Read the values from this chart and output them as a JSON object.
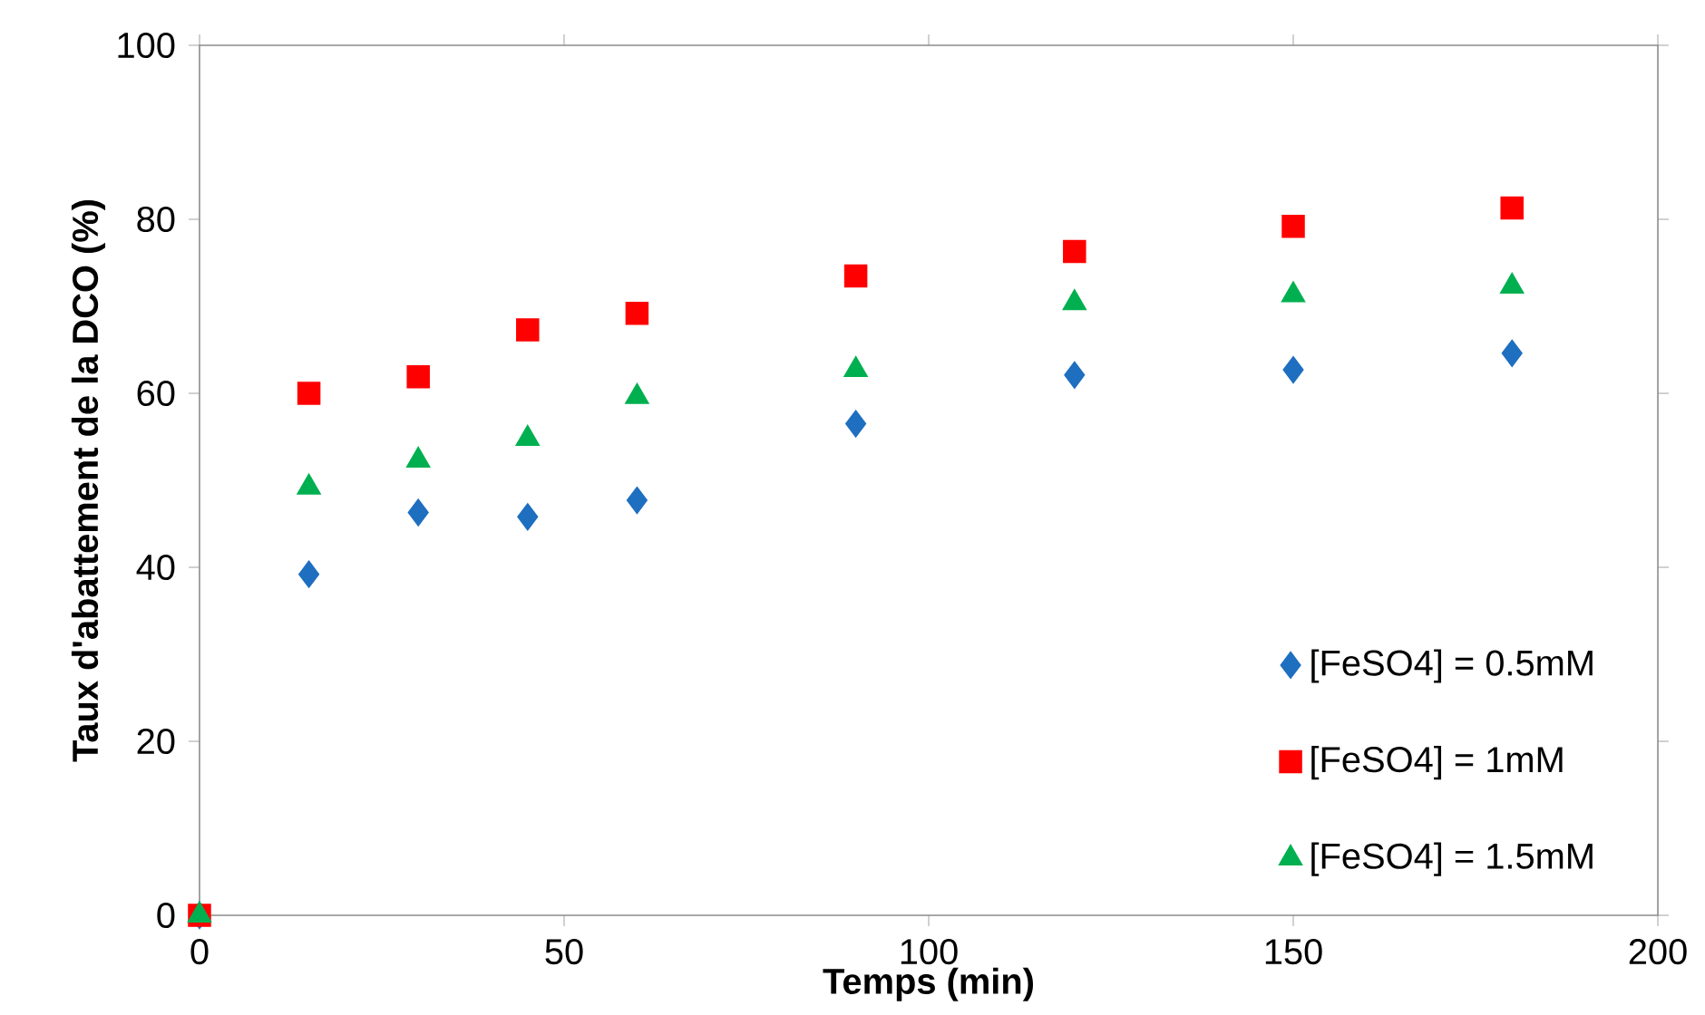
{
  "chart_data": {
    "type": "scatter",
    "xlabel": "Temps (min)",
    "ylabel": "Taux d'abattement de la DCO (%)",
    "x": [
      0,
      15,
      30,
      45,
      60,
      90,
      120,
      150,
      180
    ],
    "series": [
      {
        "name": "[FeSO4] = 0.5mM",
        "color": "#1f6fc0",
        "marker": "diamond",
        "values": [
          0,
          39.2,
          46.3,
          45.8,
          47.7,
          56.5,
          62.1,
          62.7,
          64.6
        ]
      },
      {
        "name": "[FeSO4] = 1mM",
        "color": "#ff0000",
        "marker": "square",
        "values": [
          0,
          60,
          61.9,
          67.3,
          69.2,
          73.5,
          76.3,
          79.2,
          81.3
        ]
      },
      {
        "name": "[FeSO4] = 1.5mM",
        "color": "#00b050",
        "marker": "triangle",
        "values": [
          0,
          49.2,
          52.3,
          54.8,
          59.6,
          62.7,
          70.4,
          71.3,
          72.3
        ]
      }
    ],
    "xlim": [
      0,
      200
    ],
    "ylim": [
      0,
      100
    ],
    "xticks": [
      0,
      50,
      100,
      150,
      200
    ],
    "yticks": [
      0,
      20,
      40,
      60,
      80,
      100
    ],
    "legend": "bottom right",
    "grid": false
  }
}
